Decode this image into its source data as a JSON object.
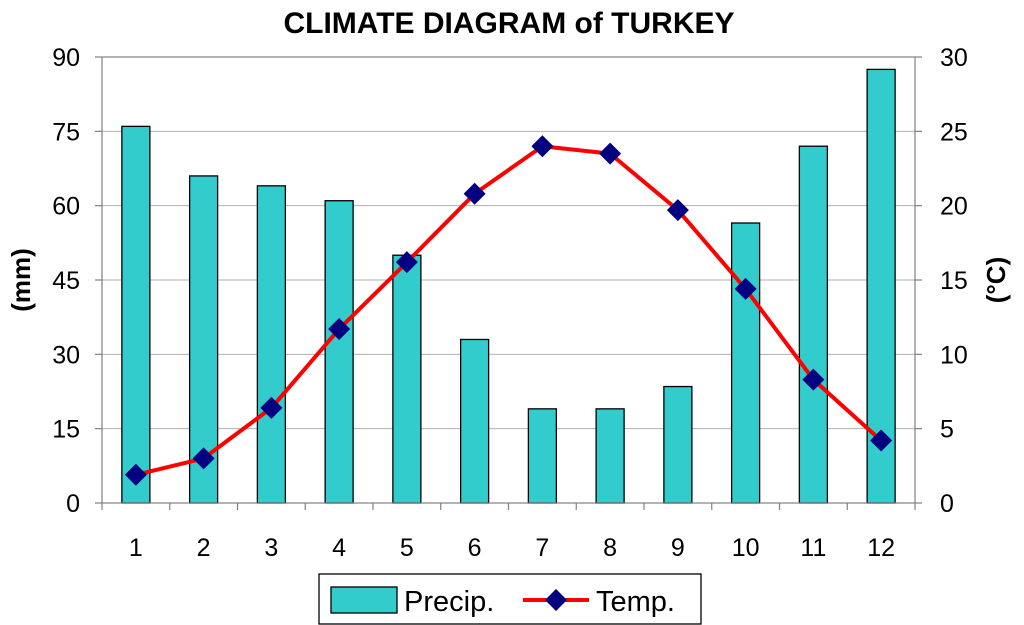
{
  "chart_data": {
    "type": "bar+line",
    "title": "CLIMATE DIAGRAM of TURKEY",
    "categories": [
      "1",
      "2",
      "3",
      "4",
      "5",
      "6",
      "7",
      "8",
      "9",
      "10",
      "11",
      "12"
    ],
    "series": [
      {
        "name": "Precip.",
        "type": "bar",
        "axis": "left",
        "values": [
          76,
          66,
          64,
          61,
          50,
          33,
          19,
          19,
          23.5,
          56.5,
          72,
          87.5
        ]
      },
      {
        "name": "Temp.",
        "type": "line",
        "axis": "right",
        "values": [
          1.9,
          3.0,
          6.4,
          11.7,
          16.2,
          20.8,
          24.0,
          23.5,
          19.7,
          14.4,
          8.3,
          4.2
        ]
      }
    ],
    "ylabel_left": "(mm)",
    "ylabel_right": "(°C)",
    "ylim_left": [
      0,
      90
    ],
    "ylim_right": [
      0,
      30
    ],
    "yticks_left": [
      "0",
      "15",
      "30",
      "45",
      "60",
      "75",
      "90"
    ],
    "yticks_right": [
      "0",
      "5",
      "10",
      "15",
      "20",
      "25",
      "30"
    ],
    "grid": true,
    "legend_position": "bottom-center",
    "colors": {
      "bar": "#33cccc",
      "line": "#ff0000",
      "marker": "#000080"
    }
  }
}
